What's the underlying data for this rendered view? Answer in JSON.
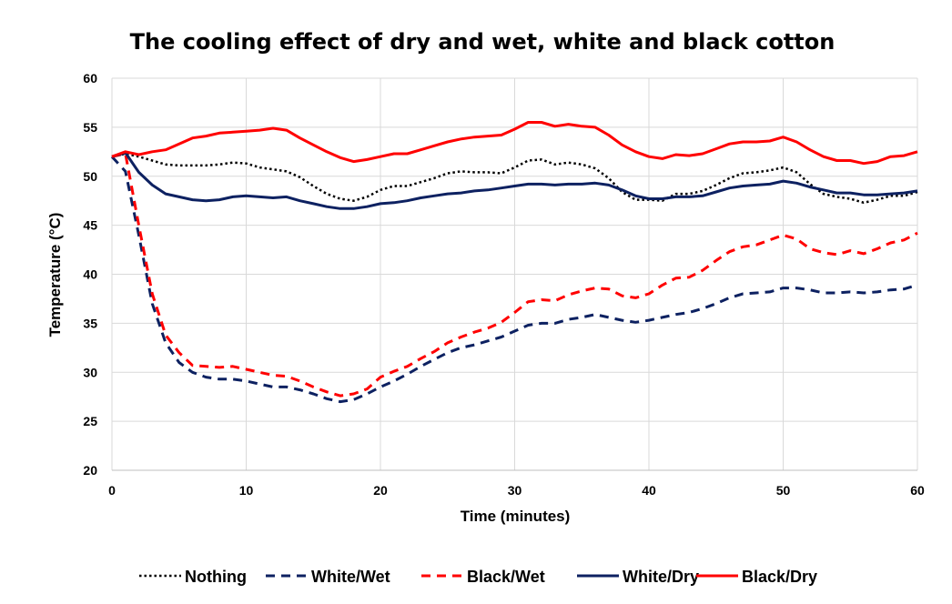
{
  "chart_data": {
    "type": "line",
    "title": "The cooling effect of dry and wet, white and black cotton",
    "xlabel": "Time (minutes)",
    "ylabel": "Temperature (°C)",
    "xlim": [
      0,
      60
    ],
    "ylim": [
      20,
      60
    ],
    "x_ticks": [
      "0",
      "10",
      "20",
      "30",
      "40",
      "50",
      "60"
    ],
    "y_ticks": [
      "20",
      "25",
      "30",
      "35",
      "40",
      "45",
      "50",
      "55",
      "60"
    ],
    "grid": true,
    "legend_position": "bottom",
    "x": [
      0,
      1,
      2,
      3,
      4,
      5,
      6,
      7,
      8,
      9,
      10,
      11,
      12,
      13,
      14,
      15,
      16,
      17,
      18,
      19,
      20,
      21,
      22,
      23,
      24,
      25,
      26,
      27,
      28,
      29,
      30,
      31,
      32,
      33,
      34,
      35,
      36,
      37,
      38,
      39,
      40,
      41,
      42,
      43,
      44,
      45,
      46,
      47,
      48,
      49,
      50,
      51,
      52,
      53,
      54,
      55,
      56,
      57,
      58,
      59,
      60
    ],
    "series": [
      {
        "name": "Nothing",
        "color": "#000000",
        "style": "dotted",
        "values": [
          52.0,
          52.3,
          52.0,
          51.6,
          51.2,
          51.1,
          51.1,
          51.1,
          51.2,
          51.4,
          51.3,
          50.9,
          50.7,
          50.5,
          49.9,
          49.0,
          48.2,
          47.7,
          47.5,
          47.9,
          48.6,
          49.0,
          49.0,
          49.4,
          49.8,
          50.3,
          50.5,
          50.4,
          50.4,
          50.3,
          50.9,
          51.6,
          51.7,
          51.2,
          51.4,
          51.2,
          50.8,
          49.8,
          48.4,
          47.6,
          47.6,
          47.5,
          48.2,
          48.2,
          48.5,
          49.1,
          49.8,
          50.3,
          50.4,
          50.6,
          50.9,
          50.4,
          49.2,
          48.2,
          47.9,
          47.7,
          47.3,
          47.6,
          48.0,
          48.0,
          48.4
        ]
      },
      {
        "name": "White/Wet",
        "color": "#0d2161",
        "style": "dashed",
        "values": [
          52.0,
          50.5,
          44.0,
          37.0,
          33.0,
          31.0,
          30.0,
          29.5,
          29.3,
          29.3,
          29.1,
          28.8,
          28.5,
          28.5,
          28.2,
          27.8,
          27.3,
          27.0,
          27.2,
          27.8,
          28.5,
          29.1,
          29.8,
          30.6,
          31.3,
          32.0,
          32.5,
          32.8,
          33.2,
          33.6,
          34.2,
          34.8,
          35.0,
          35.0,
          35.4,
          35.6,
          35.9,
          35.6,
          35.3,
          35.1,
          35.3,
          35.6,
          35.9,
          36.1,
          36.5,
          37.0,
          37.6,
          38.0,
          38.1,
          38.2,
          38.6,
          38.6,
          38.4,
          38.1,
          38.1,
          38.2,
          38.1,
          38.2,
          38.4,
          38.5,
          38.9
        ]
      },
      {
        "name": "Black/Wet",
        "color": "#ff0000",
        "style": "dashed",
        "values": [
          52.0,
          52.3,
          45.0,
          38.0,
          33.8,
          32.0,
          30.7,
          30.6,
          30.5,
          30.6,
          30.3,
          30.0,
          29.7,
          29.6,
          29.1,
          28.5,
          28.0,
          27.6,
          27.8,
          28.3,
          29.5,
          30.1,
          30.6,
          31.4,
          32.1,
          33.0,
          33.6,
          34.1,
          34.5,
          35.1,
          36.1,
          37.2,
          37.4,
          37.3,
          37.9,
          38.3,
          38.6,
          38.5,
          37.8,
          37.6,
          38.0,
          38.9,
          39.6,
          39.7,
          40.4,
          41.4,
          42.3,
          42.8,
          43.0,
          43.5,
          44.0,
          43.6,
          42.6,
          42.2,
          42.0,
          42.4,
          42.1,
          42.6,
          43.2,
          43.5,
          44.2
        ]
      },
      {
        "name": "White/Dry",
        "color": "#0d2161",
        "style": "solid",
        "values": [
          52.0,
          52.4,
          50.4,
          49.1,
          48.2,
          47.9,
          47.6,
          47.5,
          47.6,
          47.9,
          48.0,
          47.9,
          47.8,
          47.9,
          47.5,
          47.2,
          46.9,
          46.7,
          46.7,
          46.9,
          47.2,
          47.3,
          47.5,
          47.8,
          48.0,
          48.2,
          48.3,
          48.5,
          48.6,
          48.8,
          49.0,
          49.2,
          49.2,
          49.1,
          49.2,
          49.2,
          49.3,
          49.1,
          48.6,
          48.0,
          47.7,
          47.7,
          47.9,
          47.9,
          48.0,
          48.4,
          48.8,
          49.0,
          49.1,
          49.2,
          49.5,
          49.3,
          48.9,
          48.6,
          48.3,
          48.3,
          48.1,
          48.1,
          48.2,
          48.3,
          48.5
        ]
      },
      {
        "name": "Black/Dry",
        "color": "#ff0000",
        "style": "solid",
        "values": [
          52.0,
          52.5,
          52.2,
          52.5,
          52.7,
          53.3,
          53.9,
          54.1,
          54.4,
          54.5,
          54.6,
          54.7,
          54.9,
          54.7,
          53.9,
          53.2,
          52.5,
          51.9,
          51.5,
          51.7,
          52.0,
          52.3,
          52.3,
          52.7,
          53.1,
          53.5,
          53.8,
          54.0,
          54.1,
          54.2,
          54.8,
          55.5,
          55.5,
          55.1,
          55.3,
          55.1,
          55.0,
          54.2,
          53.2,
          52.5,
          52.0,
          51.8,
          52.2,
          52.1,
          52.3,
          52.8,
          53.3,
          53.5,
          53.5,
          53.6,
          54.0,
          53.5,
          52.7,
          52.0,
          51.6,
          51.6,
          51.3,
          51.5,
          52.0,
          52.1,
          52.5
        ]
      }
    ]
  }
}
